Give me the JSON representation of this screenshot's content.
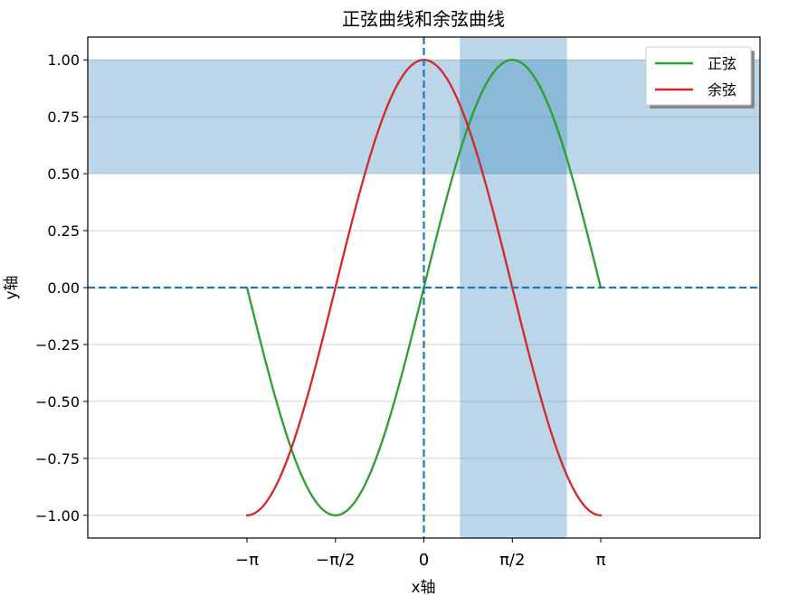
{
  "chart_data": {
    "type": "line",
    "title": "正弦曲线和余弦曲线",
    "xlabel": "x轴",
    "ylabel": "y轴",
    "xlim": [
      -5.97,
      5.97
    ],
    "ylim": [
      -1.1,
      1.1
    ],
    "x_ticks": [
      {
        "value": -3.14159,
        "label": "−π"
      },
      {
        "value": -1.5708,
        "label": "−π/2"
      },
      {
        "value": 0,
        "label": "0"
      },
      {
        "value": 1.5708,
        "label": "π/2"
      },
      {
        "value": 3.14159,
        "label": "π"
      }
    ],
    "y_ticks": [
      {
        "value": 1.0,
        "label": "1.00"
      },
      {
        "value": 0.75,
        "label": "0.75"
      },
      {
        "value": 0.5,
        "label": "0.50"
      },
      {
        "value": 0.25,
        "label": "0.25"
      },
      {
        "value": 0.0,
        "label": "0.00"
      },
      {
        "value": -0.25,
        "label": "−0.25"
      },
      {
        "value": -0.5,
        "label": "−0.50"
      },
      {
        "value": -0.75,
        "label": "−0.75"
      },
      {
        "value": -1.0,
        "label": "−1.00"
      }
    ],
    "grid": "horizontal",
    "legend_position": "top-right",
    "x_range": [
      -3.14159,
      3.14159
    ],
    "series": [
      {
        "name": "正弦",
        "function": "sin",
        "color": "#2ca02c"
      },
      {
        "name": "余弦",
        "function": "cos",
        "color": "#d62728"
      }
    ],
    "reference_lines": [
      {
        "orientation": "horizontal",
        "value": 0,
        "style": "dashed",
        "color": "#1f77b4"
      },
      {
        "orientation": "vertical",
        "value": 0,
        "style": "dashed",
        "color": "#1f77b4"
      }
    ],
    "shaded_bands": [
      {
        "orientation": "horizontal",
        "from": 0.5,
        "to": 1.0,
        "color": "#1f77b4",
        "opacity": 0.3
      },
      {
        "orientation": "vertical",
        "from": 0.64,
        "to": 2.54,
        "color": "#1f77b4",
        "opacity": 0.3
      }
    ]
  }
}
